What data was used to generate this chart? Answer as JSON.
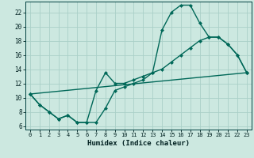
{
  "xlabel": "Humidex (Indice chaleur)",
  "xlim": [
    -0.5,
    23.5
  ],
  "ylim": [
    5.5,
    23.5
  ],
  "xticks": [
    0,
    1,
    2,
    3,
    4,
    5,
    6,
    7,
    8,
    9,
    10,
    11,
    12,
    13,
    14,
    15,
    16,
    17,
    18,
    19,
    20,
    21,
    22,
    23
  ],
  "yticks": [
    6,
    8,
    10,
    12,
    14,
    16,
    18,
    20,
    22
  ],
  "bg_color": "#cce8e0",
  "grid_color": "#aad0c8",
  "line_color": "#006858",
  "line1_x": [
    0,
    1,
    2,
    3,
    4,
    5,
    6,
    7,
    8,
    9,
    10,
    11,
    12,
    13,
    14,
    15,
    16,
    17,
    18,
    19,
    20,
    21,
    22,
    23
  ],
  "line1_y": [
    10.5,
    9.0,
    8.0,
    7.0,
    7.5,
    6.5,
    6.5,
    6.5,
    8.5,
    11.0,
    11.5,
    12.0,
    12.5,
    13.5,
    14.0,
    15.0,
    16.0,
    17.0,
    18.0,
    18.5,
    18.5,
    17.5,
    16.0,
    13.5
  ],
  "line2_x": [
    0,
    1,
    2,
    3,
    4,
    5,
    6,
    7,
    8,
    9,
    10,
    11,
    12,
    13,
    14,
    15,
    16,
    17,
    18,
    19,
    20,
    21,
    22,
    23
  ],
  "line2_y": [
    10.5,
    9.0,
    8.0,
    7.0,
    7.5,
    6.5,
    6.5,
    11.0,
    13.5,
    12.0,
    12.0,
    12.5,
    13.0,
    13.5,
    19.5,
    22.0,
    23.0,
    23.0,
    20.5,
    18.5,
    18.5,
    17.5,
    16.0,
    13.5
  ],
  "line3_x": [
    0,
    23
  ],
  "line3_y": [
    10.5,
    13.5
  ],
  "markersize": 2.5,
  "linewidth": 1.0
}
